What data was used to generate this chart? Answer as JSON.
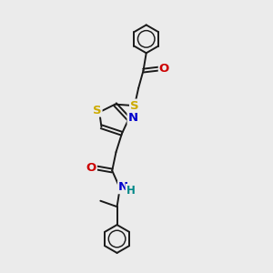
{
  "bg_color": "#ebebeb",
  "bond_color": "#1a1a1a",
  "S_color": "#ccaa00",
  "N_color": "#0000cc",
  "O_color": "#cc0000",
  "H_color": "#008888",
  "lw": 1.4,
  "fs": 9.5,
  "xlim": [
    0,
    10
  ],
  "ylim": [
    0,
    14
  ]
}
